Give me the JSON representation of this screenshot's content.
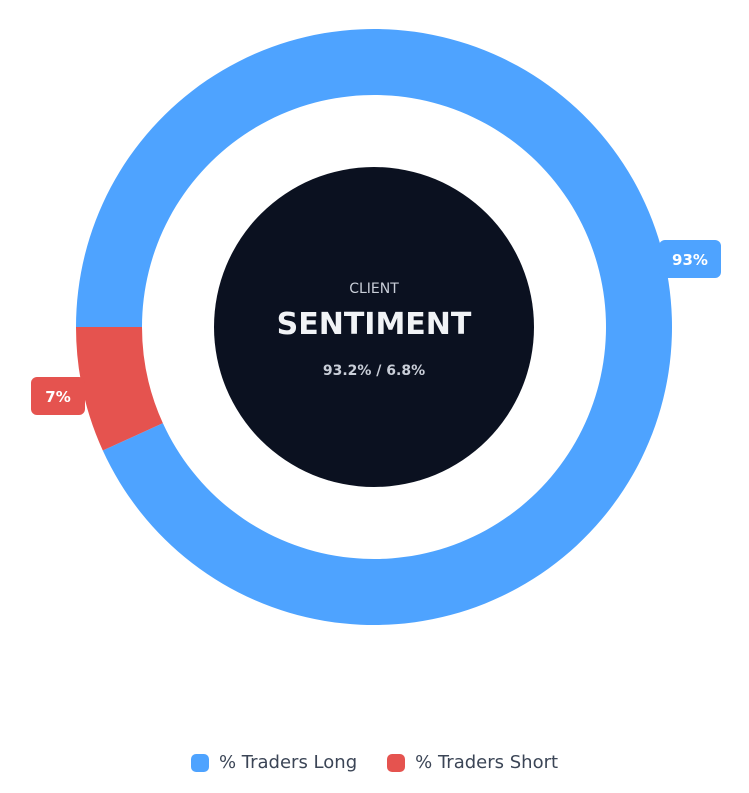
{
  "chart_data": {
    "type": "pie",
    "variant": "donut",
    "categories": [
      "% Traders Long",
      "% Traders Short"
    ],
    "values": [
      93.2,
      6.8
    ],
    "colors": [
      "#4ea3ff",
      "#e5534f"
    ],
    "data_labels": [
      "93%",
      "7%"
    ],
    "center": {
      "label_small": "CLIENT",
      "label_big": "SENTIMENT",
      "label_sub": "93.2% / 6.8%"
    },
    "center_color": "#0b1120",
    "legend_position": "bottom"
  },
  "legend": {
    "items": [
      {
        "label": "% Traders Long",
        "color": "#4ea3ff"
      },
      {
        "label": "% Traders Short",
        "color": "#e5534f"
      }
    ]
  }
}
